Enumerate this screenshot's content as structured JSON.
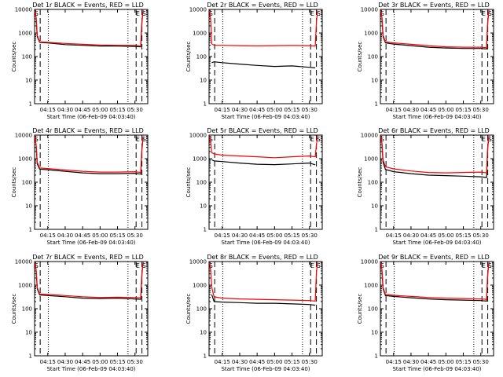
{
  "colors": {
    "events": "#000000",
    "lld": "#ff0000",
    "axis": "#000000"
  },
  "common": {
    "xlabel": "Start Time (06-Feb-09 04:03:40)",
    "ylabel": "Counts/sec",
    "x_tick_labels": [
      "04:15",
      "04:30",
      "04:45",
      "05:00",
      "05:15",
      "05:30"
    ],
    "x_tick_minutes": [
      15,
      30,
      45,
      60,
      75,
      90
    ],
    "y_tick_labels": [
      "1",
      "10",
      "100",
      "1000",
      "10000"
    ],
    "y_tick_values": [
      1,
      10,
      100,
      1000,
      10000
    ],
    "xlim_minutes": [
      3.67,
      101
    ],
    "ylim": [
      1,
      10000
    ],
    "yscale": "log"
  },
  "chart_data": [
    {
      "title": "Det 1r BLACK = Events, RED = LLD",
      "markers": [
        {
          "text": "S",
          "pos": "left"
        },
        {
          "text": "E",
          "pos": "right1"
        },
        {
          "text": "S",
          "pos": "right2"
        }
      ],
      "events": [
        [
          5,
          4000
        ],
        [
          6,
          700
        ],
        [
          8,
          400
        ],
        [
          15,
          380
        ],
        [
          30,
          320
        ],
        [
          45,
          300
        ],
        [
          60,
          280
        ],
        [
          75,
          280
        ],
        [
          90,
          270
        ],
        [
          95,
          260
        ],
        [
          96,
          3000
        ],
        [
          97,
          9000
        ]
      ],
      "lld": [
        [
          4,
          9000
        ],
        [
          5,
          4500
        ],
        [
          6,
          800
        ],
        [
          8,
          420
        ],
        [
          15,
          400
        ],
        [
          30,
          360
        ],
        [
          45,
          330
        ],
        [
          60,
          310
        ],
        [
          75,
          300
        ],
        [
          90,
          300
        ],
        [
          95,
          280
        ],
        [
          96,
          3500
        ],
        [
          97,
          9500
        ]
      ]
    },
    {
      "title": "Det 2r BLACK = Events, RED = LLD",
      "markers": [
        {
          "text": "S",
          "pos": "left"
        },
        {
          "text": "E",
          "pos": "right1"
        },
        {
          "text": "S",
          "pos": "right2"
        }
      ],
      "events": [
        [
          6,
          55
        ],
        [
          8,
          60
        ],
        [
          15,
          55
        ],
        [
          30,
          48
        ],
        [
          45,
          42
        ],
        [
          60,
          38
        ],
        [
          75,
          40
        ],
        [
          90,
          35
        ],
        [
          95,
          33
        ]
      ],
      "lld": [
        [
          4,
          9000
        ],
        [
          5,
          4000
        ],
        [
          6,
          350
        ],
        [
          8,
          300
        ],
        [
          15,
          300
        ],
        [
          30,
          290
        ],
        [
          45,
          285
        ],
        [
          60,
          290
        ],
        [
          75,
          295
        ],
        [
          90,
          290
        ],
        [
          95,
          280
        ],
        [
          96,
          3000
        ],
        [
          97,
          9000
        ]
      ]
    },
    {
      "title": "Det 3r BLACK = Events, RED = LLD",
      "markers": [
        {
          "text": "S",
          "pos": "left"
        },
        {
          "text": "E",
          "pos": "right1"
        },
        {
          "text": "S",
          "pos": "right2"
        }
      ],
      "events": [
        [
          5,
          4000
        ],
        [
          6,
          700
        ],
        [
          8,
          380
        ],
        [
          15,
          340
        ],
        [
          30,
          290
        ],
        [
          45,
          250
        ],
        [
          60,
          230
        ],
        [
          75,
          220
        ],
        [
          90,
          220
        ],
        [
          95,
          210
        ],
        [
          96,
          3000
        ],
        [
          97,
          9000
        ]
      ],
      "lld": [
        [
          4,
          9000
        ],
        [
          5,
          4500
        ],
        [
          6,
          800
        ],
        [
          8,
          420
        ],
        [
          15,
          380
        ],
        [
          30,
          330
        ],
        [
          45,
          290
        ],
        [
          60,
          260
        ],
        [
          75,
          250
        ],
        [
          90,
          250
        ],
        [
          95,
          240
        ],
        [
          96,
          3500
        ],
        [
          97,
          9500
        ]
      ]
    },
    {
      "title": "Det 4r BLACK = Events, RED = LLD",
      "markers": [
        {
          "text": "S",
          "pos": "left"
        },
        {
          "text": "E",
          "pos": "right1"
        },
        {
          "text": "S",
          "pos": "right2"
        }
      ],
      "events": [
        [
          5,
          3500
        ],
        [
          6,
          600
        ],
        [
          8,
          360
        ],
        [
          15,
          340
        ],
        [
          30,
          290
        ],
        [
          45,
          250
        ],
        [
          60,
          230
        ],
        [
          75,
          230
        ],
        [
          90,
          240
        ],
        [
          95,
          220
        ],
        [
          96,
          2500
        ],
        [
          97,
          8000
        ]
      ],
      "lld": [
        [
          4,
          9000
        ],
        [
          5,
          4000
        ],
        [
          6,
          700
        ],
        [
          8,
          400
        ],
        [
          15,
          380
        ],
        [
          30,
          330
        ],
        [
          45,
          290
        ],
        [
          60,
          270
        ],
        [
          75,
          270
        ],
        [
          90,
          280
        ],
        [
          95,
          260
        ],
        [
          96,
          3000
        ],
        [
          97,
          9000
        ]
      ]
    },
    {
      "title": "Det 5r BLACK = Events, RED = LLD",
      "markers": [
        {
          "text": "S",
          "pos": "left"
        },
        {
          "text": "E",
          "pos": "right1"
        },
        {
          "text": "S",
          "pos": "right2"
        }
      ],
      "events": [
        [
          6,
          900
        ],
        [
          8,
          800
        ],
        [
          15,
          750
        ],
        [
          30,
          650
        ],
        [
          45,
          580
        ],
        [
          60,
          560
        ],
        [
          75,
          600
        ],
        [
          90,
          650
        ],
        [
          95,
          550
        ]
      ],
      "lld": [
        [
          4,
          9000
        ],
        [
          5,
          5000
        ],
        [
          6,
          1800
        ],
        [
          8,
          1600
        ],
        [
          15,
          1400
        ],
        [
          30,
          1300
        ],
        [
          45,
          1200
        ],
        [
          60,
          1100
        ],
        [
          75,
          1200
        ],
        [
          90,
          1300
        ],
        [
          95,
          1200
        ],
        [
          96,
          4000
        ],
        [
          97,
          9500
        ]
      ]
    },
    {
      "title": "Det 6r BLACK = Events, RED = LLD",
      "markers": [
        {
          "text": "S",
          "pos": "left"
        },
        {
          "text": "E",
          "pos": "right1"
        },
        {
          "text": "S",
          "pos": "right2"
        }
      ],
      "events": [
        [
          5,
          4000
        ],
        [
          6,
          700
        ],
        [
          8,
          350
        ],
        [
          15,
          280
        ],
        [
          30,
          230
        ],
        [
          45,
          200
        ],
        [
          60,
          190
        ],
        [
          75,
          180
        ],
        [
          90,
          170
        ],
        [
          95,
          160
        ],
        [
          96,
          3000
        ],
        [
          97,
          9000
        ]
      ],
      "lld": [
        [
          4,
          9000
        ],
        [
          5,
          4500
        ],
        [
          6,
          900
        ],
        [
          8,
          450
        ],
        [
          15,
          370
        ],
        [
          30,
          300
        ],
        [
          45,
          260
        ],
        [
          60,
          250
        ],
        [
          75,
          260
        ],
        [
          90,
          270
        ],
        [
          95,
          250
        ],
        [
          96,
          3500
        ],
        [
          97,
          9500
        ]
      ]
    },
    {
      "title": "Det 7r BLACK = Events, RED = LLD",
      "markers": [
        {
          "text": "S",
          "pos": "left"
        },
        {
          "text": "E",
          "pos": "right1"
        },
        {
          "text": "S",
          "pos": "right2"
        }
      ],
      "events": [
        [
          5,
          4000
        ],
        [
          6,
          700
        ],
        [
          8,
          380
        ],
        [
          15,
          360
        ],
        [
          30,
          320
        ],
        [
          45,
          280
        ],
        [
          60,
          270
        ],
        [
          75,
          280
        ],
        [
          90,
          260
        ],
        [
          95,
          250
        ],
        [
          96,
          3000
        ],
        [
          97,
          9000
        ]
      ],
      "lld": [
        [
          4,
          9000
        ],
        [
          5,
          4500
        ],
        [
          6,
          800
        ],
        [
          8,
          420
        ],
        [
          15,
          400
        ],
        [
          30,
          360
        ],
        [
          45,
          320
        ],
        [
          60,
          300
        ],
        [
          75,
          310
        ],
        [
          90,
          300
        ],
        [
          95,
          290
        ],
        [
          96,
          3500
        ],
        [
          97,
          9500
        ]
      ]
    },
    {
      "title": "Det 8r BLACK = Events, RED = LLD",
      "markers": [
        {
          "text": "S",
          "pos": "left"
        },
        {
          "text": "E",
          "pos": "right1"
        },
        {
          "text": "S",
          "pos": "right2"
        }
      ],
      "events": [
        [
          6,
          400
        ],
        [
          8,
          200
        ],
        [
          15,
          190
        ],
        [
          30,
          180
        ],
        [
          45,
          170
        ],
        [
          60,
          170
        ],
        [
          75,
          160
        ],
        [
          90,
          150
        ],
        [
          95,
          140
        ]
      ],
      "lld": [
        [
          4,
          9000
        ],
        [
          5,
          4500
        ],
        [
          6,
          800
        ],
        [
          8,
          320
        ],
        [
          15,
          280
        ],
        [
          30,
          260
        ],
        [
          45,
          250
        ],
        [
          60,
          240
        ],
        [
          75,
          230
        ],
        [
          90,
          220
        ],
        [
          95,
          210
        ],
        [
          96,
          3500
        ],
        [
          97,
          9500
        ]
      ]
    },
    {
      "title": "Det 9r BLACK = Events, RED = LLD",
      "markers": [
        {
          "text": "S",
          "pos": "left"
        },
        {
          "text": "E",
          "pos": "right1"
        },
        {
          "text": "S",
          "pos": "right2"
        }
      ],
      "events": [
        [
          5,
          4000
        ],
        [
          6,
          700
        ],
        [
          8,
          360
        ],
        [
          15,
          330
        ],
        [
          30,
          290
        ],
        [
          45,
          260
        ],
        [
          60,
          240
        ],
        [
          75,
          230
        ],
        [
          90,
          220
        ],
        [
          95,
          210
        ],
        [
          96,
          3000
        ],
        [
          97,
          9000
        ]
      ],
      "lld": [
        [
          4,
          9000
        ],
        [
          5,
          4500
        ],
        [
          6,
          800
        ],
        [
          8,
          400
        ],
        [
          15,
          370
        ],
        [
          30,
          330
        ],
        [
          45,
          300
        ],
        [
          60,
          280
        ],
        [
          75,
          270
        ],
        [
          90,
          260
        ],
        [
          95,
          250
        ],
        [
          96,
          3500
        ],
        [
          97,
          9500
        ]
      ]
    }
  ]
}
